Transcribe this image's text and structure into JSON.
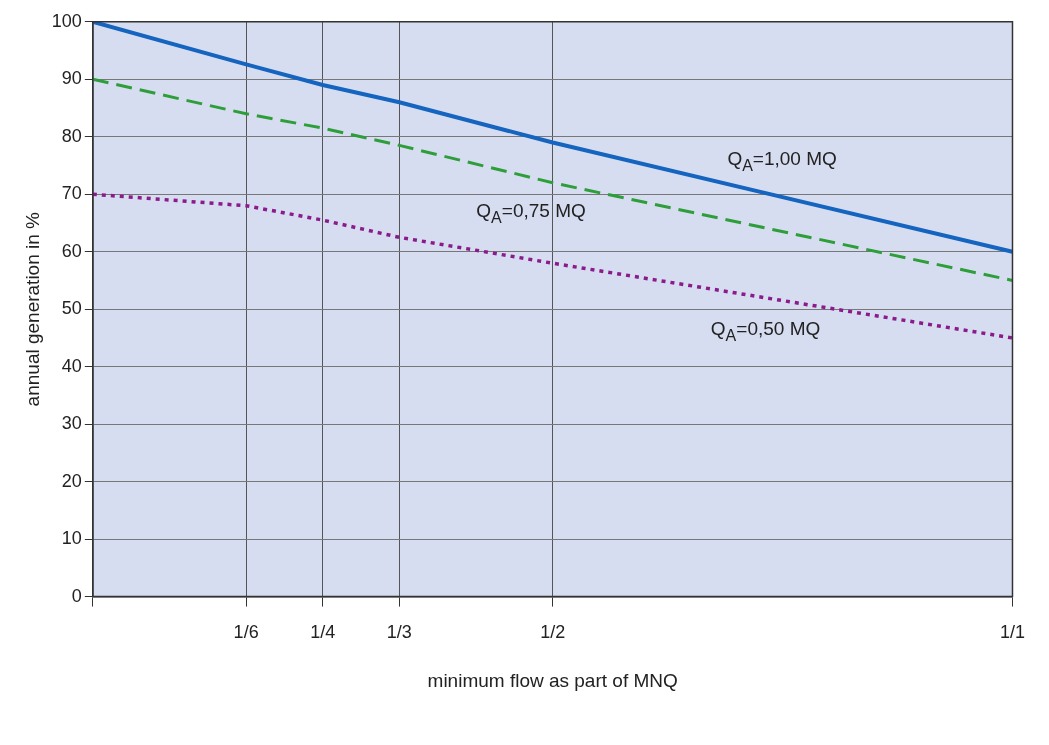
{
  "chart_data": {
    "type": "line",
    "xlabel": "minimum flow as part of MNQ",
    "ylabel": "annual generation in %",
    "x": [
      0,
      0.1667,
      0.25,
      0.3333,
      0.5,
      1
    ],
    "series": [
      {
        "color": "#1565c0",
        "values": [
          100,
          92.6,
          89,
          86,
          79,
          60
        ],
        "line_style": "solid"
      },
      {
        "color": "#2e9e3a",
        "values": [
          90,
          84,
          81.5,
          78.5,
          72,
          55
        ],
        "line_style": "dashed"
      },
      {
        "color": "#8b1a8b",
        "values": [
          70,
          68,
          65.5,
          62.5,
          58,
          45
        ],
        "line_style": "dotted"
      }
    ],
    "xlim": [
      0,
      1
    ],
    "xticks": [
      {
        "value": 0,
        "label": null
      },
      {
        "value": 0.1667,
        "label": "1/6"
      },
      {
        "value": 0.25,
        "label": "1/4"
      },
      {
        "value": 0.3333,
        "label": "1/3"
      },
      {
        "value": 0.5,
        "label": "1/2"
      },
      {
        "value": 1,
        "label": "1/1"
      }
    ],
    "ylim": [
      0,
      100
    ],
    "yticks": [
      0,
      10,
      20,
      30,
      40,
      50,
      60,
      70,
      80,
      90,
      100
    ],
    "grid": true,
    "legend": false,
    "marker": "none",
    "annotations": [
      "Q$_{A}$=1,00 MQ",
      "Q$_{A}$=0,75 MQ",
      "Q$_{A}$=0,50 MQ"
    ]
  }
}
